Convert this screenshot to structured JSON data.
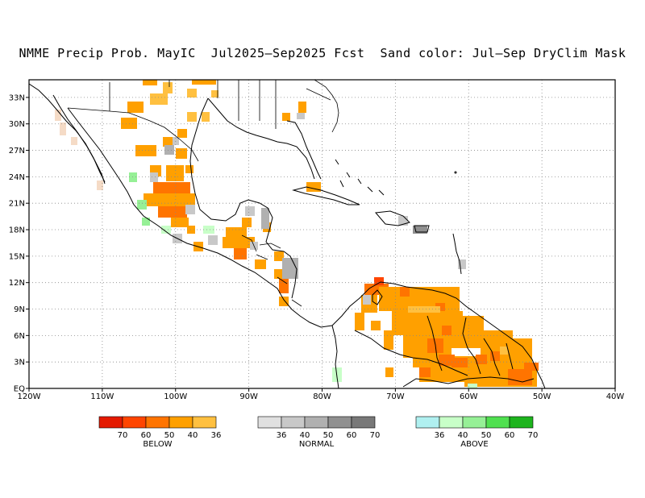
{
  "title": "NMME Precip Prob. MayIC  Jul2025–Sep2025 Fcst  Sand color: Jul–Sep DryClim Mask",
  "map": {
    "lon_range": [
      -120,
      -40
    ],
    "lat_range": [
      0,
      35
    ],
    "lon_ticks": [
      {
        "v": -120,
        "label": "120W"
      },
      {
        "v": -110,
        "label": "110W"
      },
      {
        "v": -100,
        "label": "100W"
      },
      {
        "v": -90,
        "label": "90W"
      },
      {
        "v": -80,
        "label": "80W"
      },
      {
        "v": -70,
        "label": "70W"
      },
      {
        "v": -60,
        "label": "60W"
      },
      {
        "v": -50,
        "label": "50W"
      },
      {
        "v": -40,
        "label": "40W"
      }
    ],
    "lat_ticks": [
      {
        "v": 0,
        "label": "EQ"
      },
      {
        "v": 3,
        "label": "3N"
      },
      {
        "v": 6,
        "label": "6N"
      },
      {
        "v": 9,
        "label": "9N"
      },
      {
        "v": 12,
        "label": "12N"
      },
      {
        "v": 15,
        "label": "15N"
      },
      {
        "v": 18,
        "label": "18N"
      },
      {
        "v": 21,
        "label": "21N"
      },
      {
        "v": 24,
        "label": "24N"
      },
      {
        "v": 27,
        "label": "27N"
      },
      {
        "v": 30,
        "label": "30N"
      },
      {
        "v": 33,
        "label": "33N"
      }
    ],
    "grid": "dotted"
  },
  "legend": {
    "below": {
      "name": "BELOW",
      "colors": [
        "#e41a00",
        "#ff4500",
        "#ff7400",
        "#ffa000",
        "#ffc040"
      ],
      "ticks": [
        "70",
        "60",
        "50",
        "40",
        "36"
      ]
    },
    "normal": {
      "name": "NORMAL",
      "colors": [
        "#e0e0e0",
        "#c8c8c8",
        "#b0b0b0",
        "#909090",
        "#787878"
      ],
      "ticks": [
        "36",
        "40",
        "50",
        "60",
        "70"
      ]
    },
    "above": {
      "name": "ABOVE",
      "colors": [
        "#b0f0f0",
        "#c8ffc8",
        "#96f096",
        "#50e050",
        "#1eb41e"
      ],
      "ticks": [
        "36",
        "40",
        "50",
        "60",
        "70"
      ]
    }
  }
}
